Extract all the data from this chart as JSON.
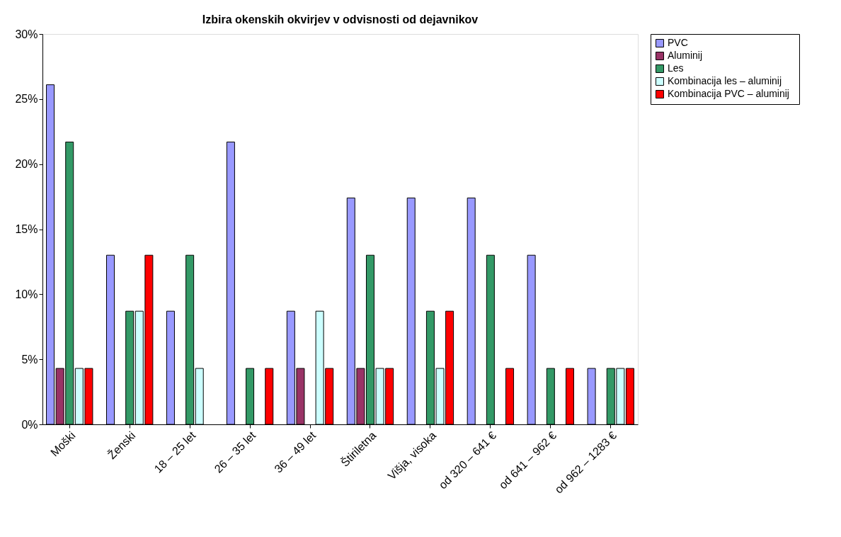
{
  "chart_data": {
    "type": "bar",
    "title": "Izbira okenskih okvirjev v odvisnosti od dejavnikov",
    "categories": [
      "Moški",
      "Ženski",
      "18 – 25 let",
      "26 – 35 let",
      "36 – 49 let",
      "Štiriletna",
      "Višja, visoka",
      "od 320 – 641 €",
      "od 641 – 962  €",
      "od 962 – 1283 €"
    ],
    "series": [
      {
        "name": "PVC",
        "color": "#9999ff",
        "values": [
          26.1,
          13.0,
          8.7,
          21.7,
          8.7,
          17.4,
          17.4,
          17.4,
          13.0,
          4.3
        ]
      },
      {
        "name": "Aluminij",
        "color": "#993366",
        "values": [
          4.3,
          null,
          null,
          null,
          4.3,
          4.3,
          null,
          null,
          null,
          null
        ]
      },
      {
        "name": "Les",
        "color": "#339966",
        "values": [
          21.7,
          8.7,
          13.0,
          4.3,
          null,
          13.0,
          8.7,
          13.0,
          4.3,
          4.3
        ]
      },
      {
        "name": "Kombinacija les –  aluminij",
        "color": "#ccffff",
        "values": [
          4.3,
          8.7,
          4.3,
          null,
          8.7,
          4.3,
          4.3,
          null,
          null,
          4.3
        ]
      },
      {
        "name": "Kombinacija  PVC –  aluminij",
        "color": "#ff0000",
        "values": [
          4.3,
          13.0,
          null,
          4.3,
          4.3,
          4.3,
          8.7,
          4.3,
          4.3,
          4.3
        ]
      }
    ],
    "ylim": [
      0,
      30
    ],
    "yticks": [
      {
        "value": 0,
        "label": "0%"
      },
      {
        "value": 5,
        "label": "5%"
      },
      {
        "value": 10,
        "label": "10%"
      },
      {
        "value": 15,
        "label": "15%"
      },
      {
        "value": 20,
        "label": "20%"
      },
      {
        "value": 25,
        "label": "25%"
      },
      {
        "value": 30,
        "label": "30%"
      }
    ],
    "grid": false,
    "legend": "right"
  }
}
